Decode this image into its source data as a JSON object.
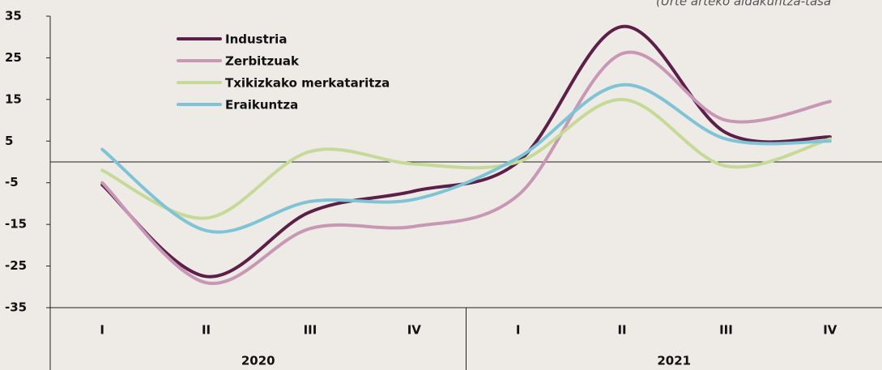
{
  "chart_data": {
    "type": "line",
    "subtitle": "(Urte arteko aldakuntza-tasa",
    "categories": [
      "I",
      "II",
      "III",
      "IV",
      "I",
      "II",
      "III",
      "IV"
    ],
    "groups": [
      "2020",
      "2021"
    ],
    "series": [
      {
        "name": "Industria",
        "color": "#5b1f48",
        "values": [
          -5.5,
          -27.5,
          -12,
          -7,
          0,
          32.5,
          7,
          6
        ]
      },
      {
        "name": "Zerbitzuak",
        "color": "#c797b5",
        "values": [
          -5,
          -29,
          -16,
          -15.5,
          -8,
          26,
          10,
          14.5
        ]
      },
      {
        "name": "Txikizkako merkataritza",
        "color": "#c5da96",
        "values": [
          -2,
          -13.5,
          2.5,
          -0.5,
          0,
          15,
          -1,
          5.5
        ]
      },
      {
        "name": "Eraikuntza",
        "color": "#7ec4d6",
        "values": [
          3,
          -16.5,
          -9.5,
          -9,
          1,
          18.5,
          5.5,
          5
        ]
      }
    ],
    "ylim": [
      -35,
      35
    ],
    "yticks": [
      -35,
      -25,
      -15,
      -5,
      5,
      15,
      25,
      35
    ]
  }
}
